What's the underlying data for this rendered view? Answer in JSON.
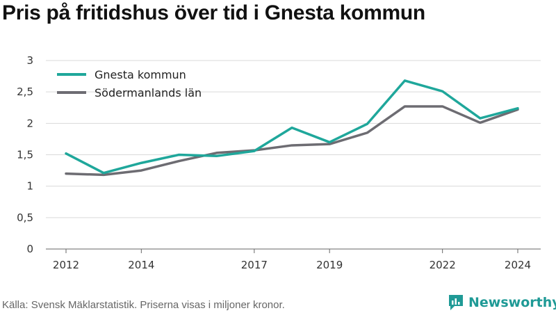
{
  "title": "Pris på fritidshus över tid i Gnesta kommun",
  "source": "Källa: Svensk Mäklarstatistik. Priserna visas i miljoner kronor.",
  "brand": {
    "name": "Newsworthy",
    "icon": "bar-chart-icon",
    "color": "#1f9a96"
  },
  "chart_data": {
    "type": "line",
    "title": "Pris på fritidshus över tid i Gnesta kommun",
    "x": [
      2012,
      2013,
      2014,
      2015,
      2016,
      2017,
      2018,
      2019,
      2020,
      2021,
      2022,
      2023,
      2024
    ],
    "xticks": [
      2012,
      2014,
      2017,
      2019,
      2022,
      2024
    ],
    "xtick_labels": [
      "2012",
      "2014",
      "2017",
      "2019",
      "2022",
      "2024"
    ],
    "yticks": [
      0,
      0.5,
      1,
      1.5,
      2,
      2.5,
      3
    ],
    "ytick_labels": [
      "0",
      "0,5",
      "1",
      "1,5",
      "2",
      "2,5",
      "3"
    ],
    "ylim": [
      0,
      3
    ],
    "xlim": [
      2012,
      2024
    ],
    "grid": true,
    "legend_position": "top-left",
    "series": [
      {
        "name": "Gnesta kommun",
        "color": "#1fa79b",
        "values": [
          1.52,
          1.21,
          1.37,
          1.5,
          1.48,
          1.56,
          1.93,
          1.7,
          1.99,
          2.68,
          2.51,
          2.08,
          2.24
        ]
      },
      {
        "name": "Södermanlands län",
        "color": "#6d6c72",
        "values": [
          1.2,
          1.18,
          1.25,
          1.4,
          1.53,
          1.57,
          1.65,
          1.67,
          1.85,
          2.27,
          2.27,
          2.01,
          2.22
        ]
      }
    ]
  }
}
